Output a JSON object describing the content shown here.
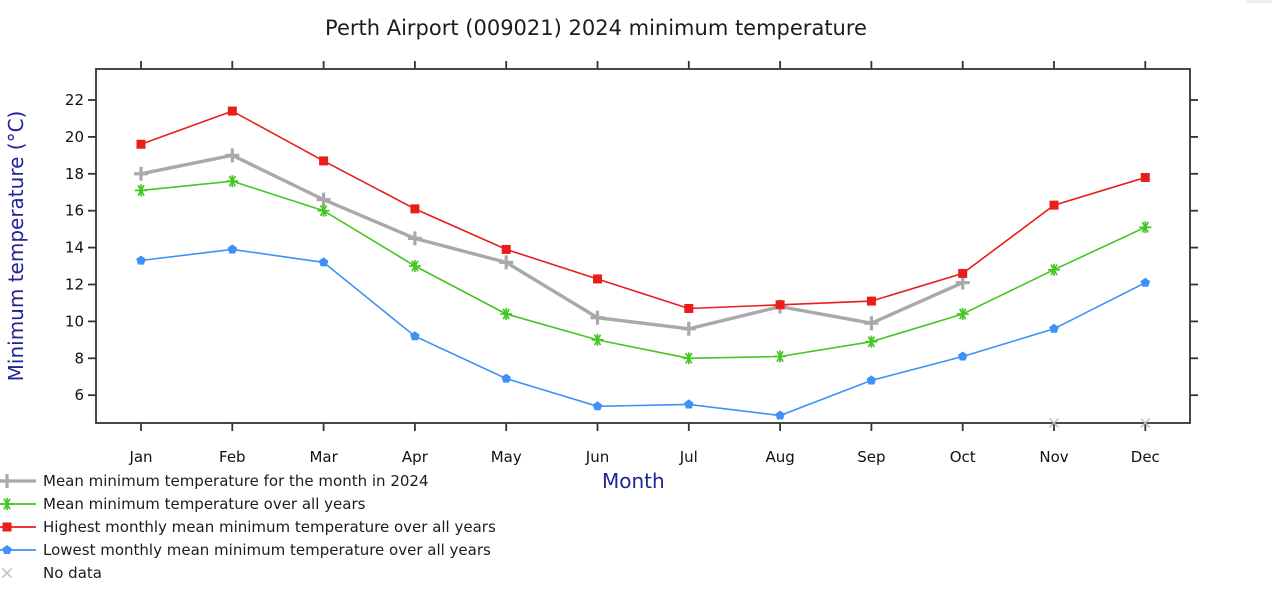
{
  "chart_data": {
    "type": "line",
    "title": "Perth Airport (009021) 2024 minimum temperature",
    "xlabel": "Month",
    "ylabel": "Minimum temperature (°C)",
    "categories": [
      "Jan",
      "Feb",
      "Mar",
      "Apr",
      "May",
      "Jun",
      "Jul",
      "Aug",
      "Sep",
      "Oct",
      "Nov",
      "Dec"
    ],
    "y_ticks": [
      22,
      20,
      18,
      16,
      14,
      12,
      10,
      8,
      6
    ],
    "ylim": [
      4.5,
      23.7
    ],
    "grid": false,
    "legend_position": "bottom-left",
    "series": [
      {
        "name": "Mean minimum temperature for the month in 2024",
        "marker": "plus",
        "color": "#a9a9a9",
        "values": [
          18.0,
          19.0,
          16.6,
          14.5,
          13.2,
          10.2,
          9.6,
          10.8,
          9.9,
          12.1,
          null,
          null
        ]
      },
      {
        "name": "Mean minimum temperature over all years",
        "marker": "asterisk",
        "color": "#43c621",
        "values": [
          17.1,
          17.6,
          16.0,
          13.0,
          10.4,
          9.0,
          8.0,
          8.1,
          8.9,
          10.4,
          12.8,
          15.1
        ]
      },
      {
        "name": "Highest monthly mean minimum temperature over all years",
        "marker": "square",
        "color": "#e81e1b",
        "values": [
          19.6,
          21.4,
          18.7,
          16.1,
          13.9,
          12.3,
          10.7,
          10.9,
          11.1,
          12.6,
          16.3,
          17.8
        ]
      },
      {
        "name": "Lowest monthly mean minimum temperature over all years",
        "marker": "pentagon",
        "color": "#3e91f7",
        "values": [
          13.3,
          13.9,
          13.2,
          9.2,
          6.9,
          5.4,
          5.5,
          4.9,
          6.8,
          8.1,
          9.6,
          12.1
        ]
      }
    ],
    "no_data": {
      "label": "No data",
      "marker": "x",
      "color": "#bcbcbc",
      "months": [
        "Nov",
        "Dec"
      ]
    }
  },
  "legend": {
    "items": [
      {
        "label": "Mean minimum temperature for the month in 2024",
        "marker": "plus",
        "color": "#a9a9a9"
      },
      {
        "label": "Mean minimum temperature over all years",
        "marker": "asterisk",
        "color": "#43c621"
      },
      {
        "label": "Highest monthly mean minimum temperature over all years",
        "marker": "square",
        "color": "#e81e1b"
      },
      {
        "label": "Lowest monthly mean minimum temperature over all years",
        "marker": "pentagon",
        "color": "#3e91f7"
      },
      {
        "label": "No data",
        "marker": "x",
        "color": "#bcbcbc"
      }
    ]
  },
  "colors": {
    "axis": "#333333",
    "tick_text": "#111111",
    "title_text": "#1c1c1c",
    "axis_label_text": "#222299",
    "background": "#ffffff"
  }
}
